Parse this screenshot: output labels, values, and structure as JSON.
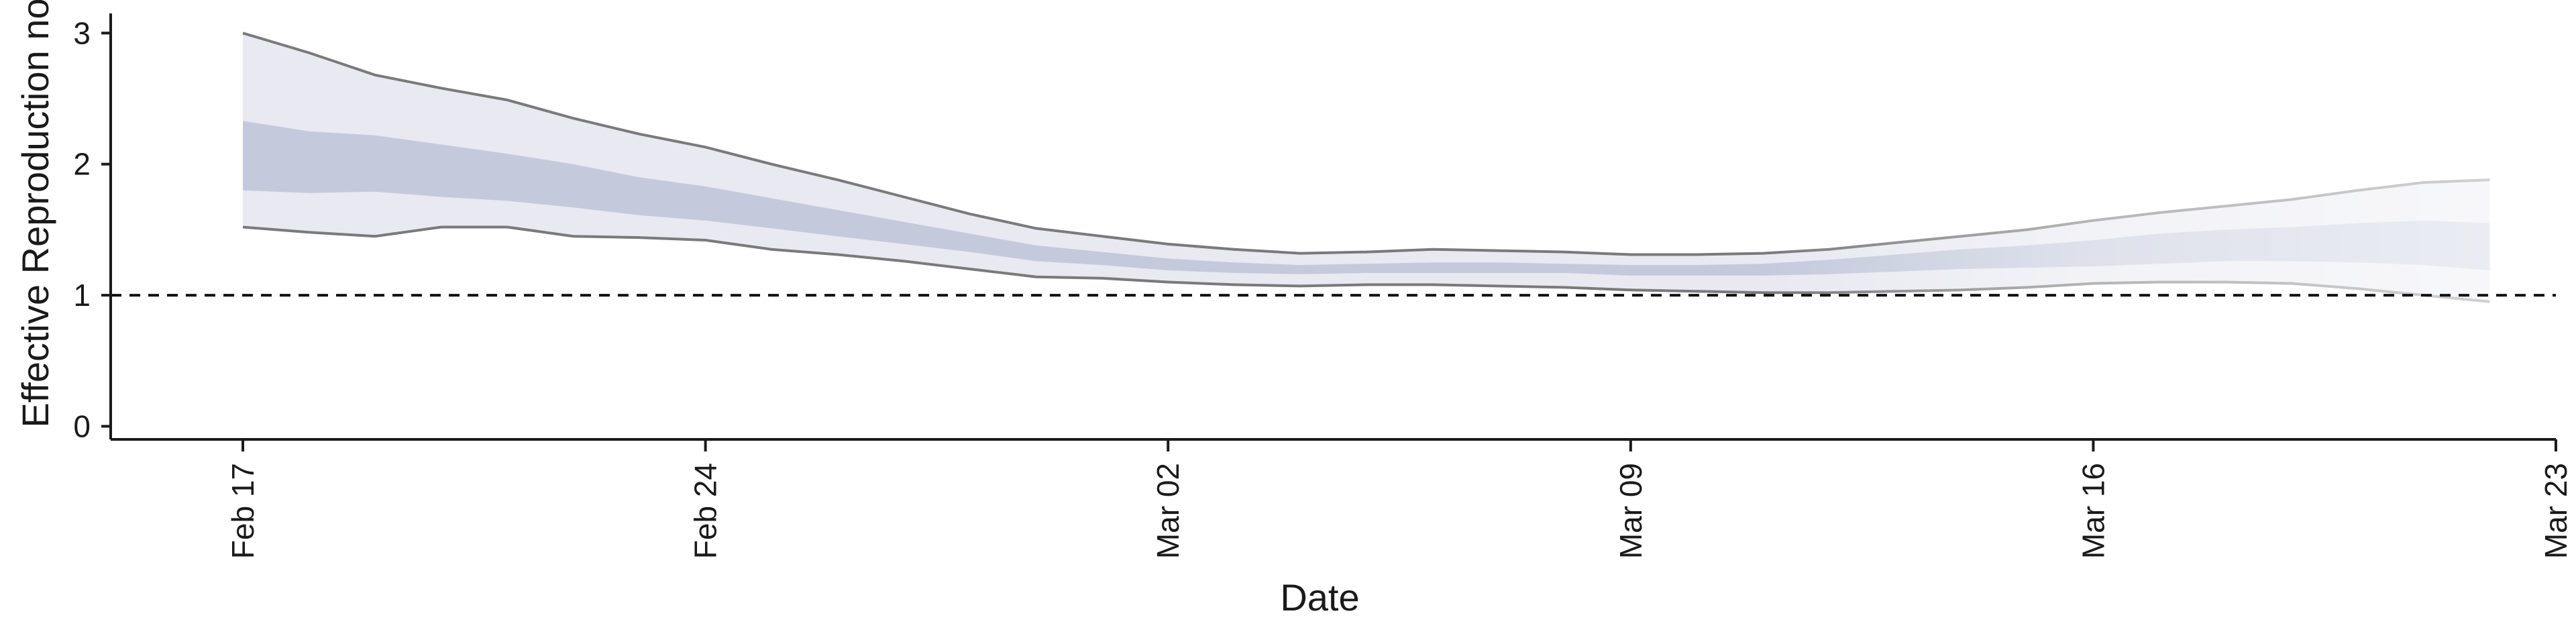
{
  "chart_data": {
    "type": "area",
    "xlabel": "Date",
    "ylabel": "Effective Reproduction no",
    "x_ticks": [
      {
        "date": "2020-02-17",
        "label": "Feb 17"
      },
      {
        "date": "2020-02-24",
        "label": "Feb 24"
      },
      {
        "date": "2020-03-02",
        "label": "Mar 02"
      },
      {
        "date": "2020-03-09",
        "label": "Mar 09"
      },
      {
        "date": "2020-03-16",
        "label": "Mar 16"
      },
      {
        "date": "2020-03-23",
        "label": "Mar 23"
      }
    ],
    "y_ticks": [
      0,
      1,
      2,
      3
    ],
    "xlim": [
      "2020-02-15",
      "2020-03-23"
    ],
    "ylim": [
      -0.1,
      3.15
    ],
    "reference_line": {
      "y": 1,
      "style": "dashed"
    },
    "grid": false,
    "dates": [
      "2020-02-17",
      "2020-02-18",
      "2020-02-19",
      "2020-02-20",
      "2020-02-21",
      "2020-02-22",
      "2020-02-23",
      "2020-02-24",
      "2020-02-25",
      "2020-02-26",
      "2020-02-27",
      "2020-02-28",
      "2020-02-29",
      "2020-03-01",
      "2020-03-02",
      "2020-03-03",
      "2020-03-04",
      "2020-03-05",
      "2020-03-06",
      "2020-03-07",
      "2020-03-08",
      "2020-03-09",
      "2020-03-10",
      "2020-03-11",
      "2020-03-12",
      "2020-03-13",
      "2020-03-14",
      "2020-03-15",
      "2020-03-16",
      "2020-03-17",
      "2020-03-18",
      "2020-03-19",
      "2020-03-20",
      "2020-03-21",
      "2020-03-22"
    ],
    "upper_90": [
      3.0,
      2.85,
      2.68,
      2.58,
      2.49,
      2.35,
      2.23,
      2.13,
      2.0,
      1.88,
      1.75,
      1.62,
      1.51,
      1.45,
      1.39,
      1.35,
      1.32,
      1.33,
      1.35,
      1.34,
      1.33,
      1.31,
      1.31,
      1.32,
      1.35,
      1.4,
      1.45,
      1.5,
      1.57,
      1.63,
      1.68,
      1.73,
      1.8,
      1.86,
      1.88
    ],
    "upper_50": [
      2.33,
      2.25,
      2.22,
      2.15,
      2.08,
      2.0,
      1.9,
      1.83,
      1.74,
      1.65,
      1.56,
      1.47,
      1.38,
      1.33,
      1.28,
      1.25,
      1.23,
      1.24,
      1.25,
      1.25,
      1.24,
      1.23,
      1.23,
      1.24,
      1.27,
      1.31,
      1.35,
      1.38,
      1.42,
      1.47,
      1.5,
      1.52,
      1.55,
      1.57,
      1.55
    ],
    "lower_50": [
      1.8,
      1.78,
      1.79,
      1.75,
      1.72,
      1.67,
      1.61,
      1.57,
      1.51,
      1.45,
      1.39,
      1.33,
      1.26,
      1.23,
      1.19,
      1.17,
      1.16,
      1.17,
      1.17,
      1.17,
      1.17,
      1.15,
      1.15,
      1.15,
      1.16,
      1.18,
      1.2,
      1.21,
      1.22,
      1.24,
      1.26,
      1.26,
      1.25,
      1.23,
      1.19
    ],
    "lower_90": [
      1.52,
      1.48,
      1.45,
      1.52,
      1.52,
      1.45,
      1.44,
      1.42,
      1.35,
      1.31,
      1.26,
      1.2,
      1.14,
      1.13,
      1.1,
      1.08,
      1.07,
      1.08,
      1.08,
      1.07,
      1.06,
      1.04,
      1.03,
      1.02,
      1.02,
      1.03,
      1.04,
      1.06,
      1.09,
      1.1,
      1.1,
      1.09,
      1.05,
      1.0,
      0.95
    ],
    "estimate_types": {
      "observed_until": "2020-03-11",
      "nowcast_until": "2020-03-16",
      "forecast_until": "2020-03-22"
    },
    "colors": {
      "band_outer": "#e8e9f1",
      "band_inner": "#c4cadc",
      "outline": "#7a7a7a",
      "axis": "#1a1a1a"
    }
  }
}
